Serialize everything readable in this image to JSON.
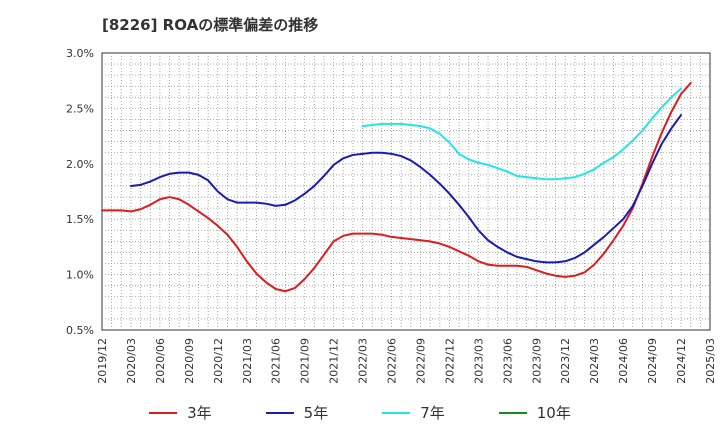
{
  "title": "[8226]  ROAの標準偏差の推移",
  "chart_data": {
    "type": "line",
    "title": "[8226]  ROAの標準偏差の推移",
    "xlabel": "",
    "ylabel": "",
    "ylim": [
      0.5,
      3.0
    ],
    "yticks": [
      "0.5%",
      "1.0%",
      "1.5%",
      "2.0%",
      "2.5%",
      "3.0%"
    ],
    "ytick_values": [
      0.5,
      1.0,
      1.5,
      2.0,
      2.5,
      3.0
    ],
    "xlim": [
      "2019-12",
      "2025-03"
    ],
    "xticks": [
      "2019/12",
      "2020/03",
      "2020/06",
      "2020/09",
      "2020/12",
      "2021/03",
      "2021/06",
      "2021/09",
      "2021/12",
      "2022/03",
      "2022/06",
      "2022/09",
      "2022/12",
      "2023/03",
      "2023/06",
      "2023/09",
      "2023/12",
      "2024/03",
      "2024/06",
      "2024/09",
      "2024/12",
      "2025/03"
    ],
    "grid": true,
    "legend_position": "bottom",
    "series": [
      {
        "name": "3年",
        "color": "#dd1c1c",
        "points": [
          [
            "2019-12",
            1.58
          ],
          [
            "2020-01",
            1.58
          ],
          [
            "2020-02",
            1.58
          ],
          [
            "2020-03",
            1.57
          ],
          [
            "2020-04",
            1.59
          ],
          [
            "2020-05",
            1.63
          ],
          [
            "2020-06",
            1.68
          ],
          [
            "2020-07",
            1.7
          ],
          [
            "2020-08",
            1.68
          ],
          [
            "2020-09",
            1.63
          ],
          [
            "2020-10",
            1.57
          ],
          [
            "2020-11",
            1.51
          ],
          [
            "2020-12",
            1.44
          ],
          [
            "2021-01",
            1.36
          ],
          [
            "2021-02",
            1.25
          ],
          [
            "2021-03",
            1.12
          ],
          [
            "2021-04",
            1.01
          ],
          [
            "2021-05",
            0.93
          ],
          [
            "2021-06",
            0.87
          ],
          [
            "2021-07",
            0.85
          ],
          [
            "2021-08",
            0.88
          ],
          [
            "2021-09",
            0.96
          ],
          [
            "2021-10",
            1.06
          ],
          [
            "2021-11",
            1.18
          ],
          [
            "2021-12",
            1.3
          ],
          [
            "2022-01",
            1.35
          ],
          [
            "2022-02",
            1.37
          ],
          [
            "2022-03",
            1.37
          ],
          [
            "2022-04",
            1.37
          ],
          [
            "2022-05",
            1.36
          ],
          [
            "2022-06",
            1.34
          ],
          [
            "2022-07",
            1.33
          ],
          [
            "2022-08",
            1.32
          ],
          [
            "2022-09",
            1.31
          ],
          [
            "2022-10",
            1.3
          ],
          [
            "2022-11",
            1.28
          ],
          [
            "2022-12",
            1.25
          ],
          [
            "2023-01",
            1.21
          ],
          [
            "2023-02",
            1.17
          ],
          [
            "2023-03",
            1.12
          ],
          [
            "2023-04",
            1.09
          ],
          [
            "2023-05",
            1.08
          ],
          [
            "2023-06",
            1.08
          ],
          [
            "2023-07",
            1.08
          ],
          [
            "2023-08",
            1.07
          ],
          [
            "2023-09",
            1.04
          ],
          [
            "2023-10",
            1.01
          ],
          [
            "2023-11",
            0.99
          ],
          [
            "2023-12",
            0.98
          ],
          [
            "2024-01",
            0.99
          ],
          [
            "2024-02",
            1.02
          ],
          [
            "2024-03",
            1.09
          ],
          [
            "2024-04",
            1.19
          ],
          [
            "2024-05",
            1.31
          ],
          [
            "2024-06",
            1.44
          ],
          [
            "2024-07",
            1.6
          ],
          [
            "2024-08",
            1.82
          ],
          [
            "2024-09",
            2.06
          ],
          [
            "2024-10",
            2.28
          ],
          [
            "2024-11",
            2.47
          ],
          [
            "2024-12",
            2.63
          ],
          [
            "2025-01",
            2.73
          ]
        ]
      },
      {
        "name": "5年",
        "color": "#1a1ab4",
        "points": [
          [
            "2020-03",
            1.8
          ],
          [
            "2020-04",
            1.81
          ],
          [
            "2020-05",
            1.84
          ],
          [
            "2020-06",
            1.88
          ],
          [
            "2020-07",
            1.91
          ],
          [
            "2020-08",
            1.92
          ],
          [
            "2020-09",
            1.92
          ],
          [
            "2020-10",
            1.9
          ],
          [
            "2020-11",
            1.85
          ],
          [
            "2020-12",
            1.75
          ],
          [
            "2021-01",
            1.68
          ],
          [
            "2021-02",
            1.65
          ],
          [
            "2021-03",
            1.65
          ],
          [
            "2021-04",
            1.65
          ],
          [
            "2021-05",
            1.64
          ],
          [
            "2021-06",
            1.62
          ],
          [
            "2021-07",
            1.63
          ],
          [
            "2021-08",
            1.67
          ],
          [
            "2021-09",
            1.73
          ],
          [
            "2021-10",
            1.8
          ],
          [
            "2021-11",
            1.89
          ],
          [
            "2021-12",
            1.99
          ],
          [
            "2022-01",
            2.05
          ],
          [
            "2022-02",
            2.08
          ],
          [
            "2022-03",
            2.09
          ],
          [
            "2022-04",
            2.1
          ],
          [
            "2022-05",
            2.1
          ],
          [
            "2022-06",
            2.09
          ],
          [
            "2022-07",
            2.07
          ],
          [
            "2022-08",
            2.03
          ],
          [
            "2022-09",
            1.97
          ],
          [
            "2022-10",
            1.9
          ],
          [
            "2022-11",
            1.82
          ],
          [
            "2022-12",
            1.73
          ],
          [
            "2023-01",
            1.63
          ],
          [
            "2023-02",
            1.52
          ],
          [
            "2023-03",
            1.4
          ],
          [
            "2023-04",
            1.31
          ],
          [
            "2023-05",
            1.25
          ],
          [
            "2023-06",
            1.2
          ],
          [
            "2023-07",
            1.16
          ],
          [
            "2023-08",
            1.14
          ],
          [
            "2023-09",
            1.12
          ],
          [
            "2023-10",
            1.11
          ],
          [
            "2023-11",
            1.11
          ],
          [
            "2023-12",
            1.12
          ],
          [
            "2024-01",
            1.15
          ],
          [
            "2024-02",
            1.2
          ],
          [
            "2024-03",
            1.27
          ],
          [
            "2024-04",
            1.34
          ],
          [
            "2024-05",
            1.42
          ],
          [
            "2024-06",
            1.5
          ],
          [
            "2024-07",
            1.62
          ],
          [
            "2024-08",
            1.8
          ],
          [
            "2024-09",
            2.0
          ],
          [
            "2024-10",
            2.18
          ],
          [
            "2024-11",
            2.32
          ],
          [
            "2024-12",
            2.44
          ]
        ]
      },
      {
        "name": "7年",
        "color": "#22e6e6",
        "points": [
          [
            "2022-03",
            2.34
          ],
          [
            "2022-04",
            2.35
          ],
          [
            "2022-05",
            2.36
          ],
          [
            "2022-06",
            2.36
          ],
          [
            "2022-07",
            2.36
          ],
          [
            "2022-08",
            2.35
          ],
          [
            "2022-09",
            2.34
          ],
          [
            "2022-10",
            2.32
          ],
          [
            "2022-11",
            2.27
          ],
          [
            "2022-12",
            2.19
          ],
          [
            "2023-01",
            2.09
          ],
          [
            "2023-02",
            2.04
          ],
          [
            "2023-03",
            2.01
          ],
          [
            "2023-04",
            1.99
          ],
          [
            "2023-05",
            1.96
          ],
          [
            "2023-06",
            1.93
          ],
          [
            "2023-07",
            1.89
          ],
          [
            "2023-08",
            1.88
          ],
          [
            "2023-09",
            1.87
          ],
          [
            "2023-10",
            1.86
          ],
          [
            "2023-11",
            1.86
          ],
          [
            "2023-12",
            1.87
          ],
          [
            "2024-01",
            1.88
          ],
          [
            "2024-02",
            1.91
          ],
          [
            "2024-03",
            1.95
          ],
          [
            "2024-04",
            2.01
          ],
          [
            "2024-05",
            2.06
          ],
          [
            "2024-06",
            2.13
          ],
          [
            "2024-07",
            2.21
          ],
          [
            "2024-08",
            2.3
          ],
          [
            "2024-09",
            2.41
          ],
          [
            "2024-10",
            2.51
          ],
          [
            "2024-11",
            2.6
          ],
          [
            "2024-12",
            2.68
          ]
        ]
      },
      {
        "name": "10年",
        "color": "#1a8a1a",
        "points": []
      }
    ]
  }
}
